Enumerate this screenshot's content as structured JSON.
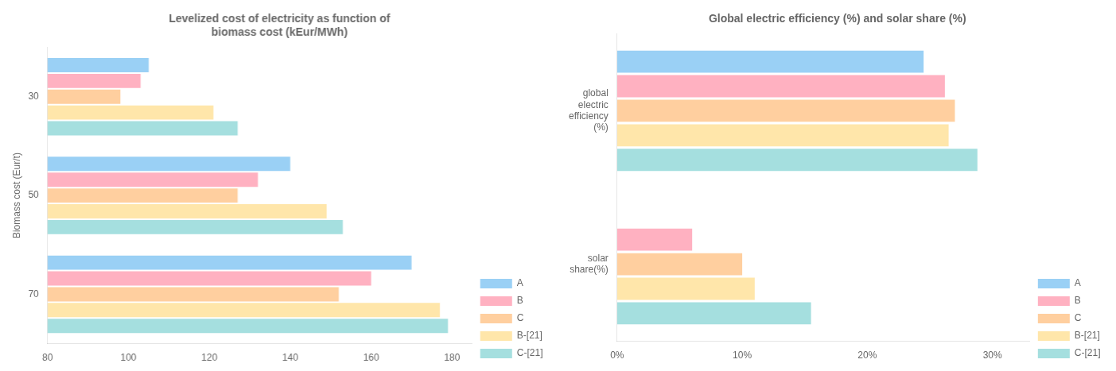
{
  "chart_data": [
    {
      "type": "bar",
      "orientation": "horizontal",
      "title": "Levelized cost of electricity as function of\nbiomass cost (kEur/MWh)",
      "ylabel": "Biomass cost (Eur/t)",
      "categories": [
        "30",
        "50",
        "70"
      ],
      "series": [
        {
          "name": "A",
          "values": [
            105,
            140,
            170
          ]
        },
        {
          "name": "B",
          "values": [
            103,
            132,
            160
          ]
        },
        {
          "name": "C",
          "values": [
            98,
            127,
            152
          ]
        },
        {
          "name": "B-[21]",
          "values": [
            121,
            149,
            177
          ]
        },
        {
          "name": "C-[21]",
          "values": [
            127,
            153,
            179
          ]
        }
      ],
      "xlim": [
        80,
        185
      ],
      "xticks": [
        80,
        100,
        120,
        140,
        160,
        180
      ],
      "grid": false,
      "legend": "lower right"
    },
    {
      "type": "bar",
      "orientation": "horizontal",
      "title": "Global electric efficiency (%) and solar share (%)",
      "categories": [
        "global\nelectric\nefficiency\n(%)",
        "solar\nshare(%)"
      ],
      "series": [
        {
          "name": "A",
          "values": [
            0.245,
            null
          ]
        },
        {
          "name": "B",
          "values": [
            0.262,
            0.06
          ]
        },
        {
          "name": "C",
          "values": [
            0.27,
            0.1
          ]
        },
        {
          "name": "B-[21]",
          "values": [
            0.265,
            0.11
          ]
        },
        {
          "name": "C-[21]",
          "values": [
            0.288,
            0.155
          ]
        }
      ],
      "xlim": [
        0,
        0.33
      ],
      "xticks": [
        {
          "value": 0.0,
          "label": "0%"
        },
        {
          "value": 0.1,
          "label": "10%"
        },
        {
          "value": 0.2,
          "label": "20%"
        },
        {
          "value": 0.3,
          "label": "30%"
        }
      ],
      "grid": false,
      "legend": "lower right"
    }
  ]
}
